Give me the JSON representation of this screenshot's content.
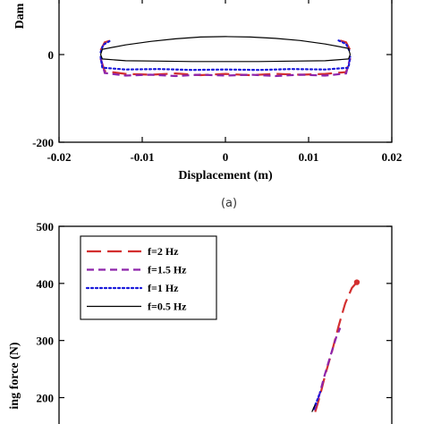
{
  "chart_data": [
    {
      "type": "line",
      "panel_label": "(a)",
      "xlabel": "Displacement (m)",
      "ylabel": "Dam",
      "xlim": [
        -0.02,
        0.02
      ],
      "ylim": [
        -200,
        32
      ],
      "x_ticks": [
        -0.02,
        -0.01,
        0,
        0.01,
        0.02
      ],
      "x_tick_labels": [
        "-0.02",
        "-0.01",
        "0",
        "0.01",
        "0.02"
      ],
      "y_ticks": [
        -200,
        0
      ],
      "y_tick_labels": [
        "-200",
        "0"
      ],
      "series": [
        {
          "name": "f=2 Hz",
          "color": "#d32f2f",
          "dash": "dash",
          "upper": [
            [
              -0.015,
              10
            ],
            [
              -0.0145,
              28
            ],
            [
              -0.0138,
              32
            ]
          ],
          "upper_right": [
            [
              0.0138,
              32
            ],
            [
              0.0145,
              28
            ],
            [
              0.015,
              10
            ]
          ],
          "lower": [
            [
              -0.015,
              -10
            ],
            [
              -0.0145,
              -38
            ],
            [
              -0.012,
              -44
            ],
            [
              -0.009,
              -46
            ],
            [
              -0.006,
              -43
            ],
            [
              -0.003,
              -47
            ],
            [
              0,
              -44
            ],
            [
              0.003,
              -47
            ],
            [
              0.006,
              -44
            ],
            [
              0.009,
              -46
            ],
            [
              0.012,
              -44
            ],
            [
              0.0145,
              -40
            ],
            [
              0.015,
              -10
            ]
          ]
        },
        {
          "name": "f=1.5 Hz",
          "color": "#8e24aa",
          "dash": "medium-dash",
          "upper": [],
          "upper_right": [],
          "lower": [
            [
              -0.015,
              -8
            ],
            [
              -0.0145,
              -42
            ],
            [
              -0.012,
              -48
            ],
            [
              -0.009,
              -46
            ],
            [
              -0.006,
              -49
            ],
            [
              -0.003,
              -46
            ],
            [
              0,
              -48
            ],
            [
              0.003,
              -46
            ],
            [
              0.006,
              -49
            ],
            [
              0.009,
              -46
            ],
            [
              0.012,
              -48
            ],
            [
              0.0145,
              -43
            ],
            [
              0.015,
              -8
            ]
          ]
        },
        {
          "name": "f=1 Hz",
          "color": "#1a1adb",
          "dash": "dot",
          "upper": [
            [
              -0.015,
              5
            ],
            [
              -0.0147,
              22
            ],
            [
              -0.0138,
              32
            ]
          ],
          "upper_right": [
            [
              0.0136,
              32
            ],
            [
              0.0145,
              24
            ],
            [
              0.015,
              5
            ]
          ],
          "lower": [
            [
              -0.015,
              -5
            ],
            [
              -0.0148,
              -30
            ],
            [
              -0.012,
              -34
            ],
            [
              -0.008,
              -33
            ],
            [
              -0.004,
              -35
            ],
            [
              0,
              -34
            ],
            [
              0.004,
              -35
            ],
            [
              0.008,
              -33
            ],
            [
              0.012,
              -34
            ],
            [
              0.0148,
              -30
            ],
            [
              0.015,
              -5
            ]
          ]
        },
        {
          "name": "f=0.5 Hz",
          "color": "#000000",
          "dash": "solid",
          "upper": [
            [
              -0.015,
              0
            ],
            [
              -0.0148,
              12
            ],
            [
              -0.012,
              22
            ],
            [
              -0.009,
              30
            ],
            [
              -0.006,
              36
            ],
            [
              -0.003,
              40
            ],
            [
              0,
              41
            ],
            [
              0.003,
              40
            ],
            [
              0.006,
              37
            ],
            [
              0.009,
              32
            ],
            [
              0.012,
              24
            ],
            [
              0.0148,
              14
            ],
            [
              0.015,
              0
            ]
          ],
          "upper_right": [],
          "lower": [
            [
              -0.015,
              0
            ],
            [
              -0.0148,
              -10
            ],
            [
              -0.012,
              -14
            ],
            [
              -0.008,
              -15
            ],
            [
              -0.004,
              -16
            ],
            [
              0,
              -16
            ],
            [
              0.004,
              -16
            ],
            [
              0.008,
              -15
            ],
            [
              0.012,
              -14
            ],
            [
              0.0148,
              -10
            ],
            [
              0.015,
              0
            ]
          ]
        }
      ]
    },
    {
      "type": "line",
      "xlabel": "",
      "ylabel": "ing force (N)",
      "ylim": [
        170,
        500
      ],
      "y_ticks": [
        200,
        300,
        400,
        500
      ],
      "y_tick_labels": [
        "200",
        "300",
        "400",
        "500"
      ],
      "legend_position": "top-left",
      "legend": [
        "f=2 Hz",
        "f=1.5 Hz",
        "f=1 Hz",
        "f=0.5 Hz"
      ],
      "series": [
        {
          "name": "f=2 Hz",
          "color": "#d32f2f",
          "dash": "dash",
          "points": [
            [
              0.0108,
              175
            ],
            [
              0.0114,
              205
            ],
            [
              0.012,
              240
            ],
            [
              0.0128,
              280
            ],
            [
              0.0136,
              325
            ],
            [
              0.0144,
              365
            ],
            [
              0.0152,
              392
            ],
            [
              0.0158,
              402
            ]
          ]
        },
        {
          "name": "f=1.5 Hz",
          "color": "#8e24aa",
          "dash": "medium-dash",
          "points": [
            [
              0.0107,
              178
            ],
            [
              0.0113,
              205
            ],
            [
              0.0119,
              238
            ],
            [
              0.0126,
              272
            ],
            [
              0.0133,
              305
            ],
            [
              0.0138,
              322
            ]
          ]
        },
        {
          "name": "f=1 Hz",
          "color": "#1a1adb",
          "dash": "dot",
          "points": [
            [
              0.0106,
              180
            ],
            [
              0.0111,
              198
            ],
            [
              0.0114,
              210
            ]
          ]
        },
        {
          "name": "f=0.5 Hz",
          "color": "#000000",
          "dash": "solid",
          "points": [
            [
              0.0104,
              175
            ],
            [
              0.0108,
              188
            ]
          ]
        }
      ]
    }
  ],
  "caption": {
    "label": "(a)"
  }
}
